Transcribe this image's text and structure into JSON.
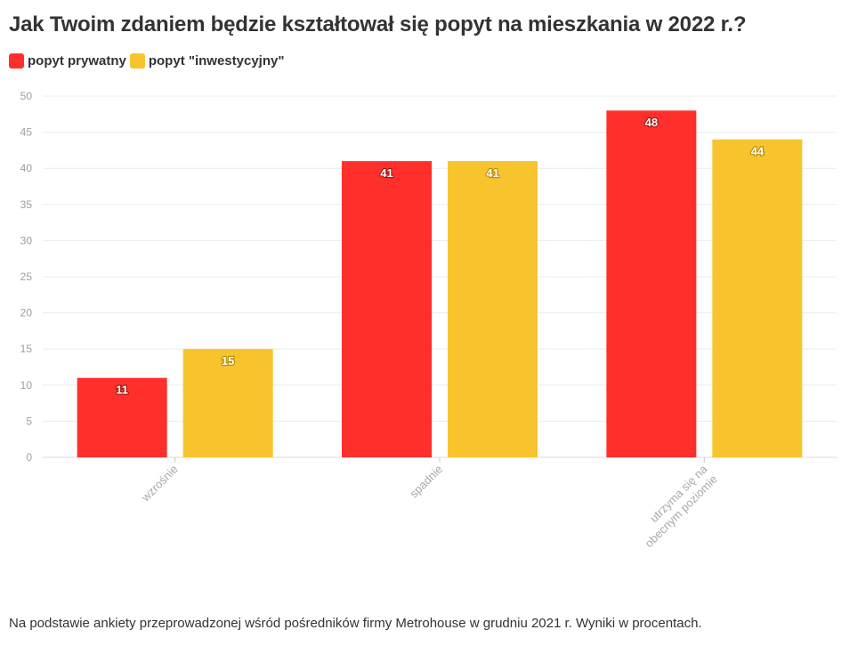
{
  "colors": {
    "private": "#ff302b",
    "investment": "#f7c42e"
  },
  "chart_data": {
    "type": "bar",
    "title": "Jak Twoim zdaniem będzie kształtował się popyt na mieszkania w 2022 r.?",
    "xlabel": "",
    "ylabel": "",
    "categories": [
      [
        "wzrośnie"
      ],
      [
        "spadnie"
      ],
      [
        "utrzyma się na",
        "obecnym poziomie"
      ]
    ],
    "series": [
      {
        "name": "popyt prywatny",
        "values": [
          11,
          41,
          48
        ]
      },
      {
        "name": "popyt \"inwestycyjny\"",
        "values": [
          15,
          41,
          44
        ]
      }
    ],
    "ylim": [
      0,
      50
    ],
    "yticks": [
      0,
      5,
      10,
      15,
      20,
      25,
      30,
      35,
      40,
      45,
      50
    ],
    "grid": true,
    "legend_position": "top-left"
  },
  "footnote": "Na podstawie ankiety przeprowadzonej wśród pośredników firmy Metrohouse w grudniu 2021 r. Wyniki w procentach."
}
